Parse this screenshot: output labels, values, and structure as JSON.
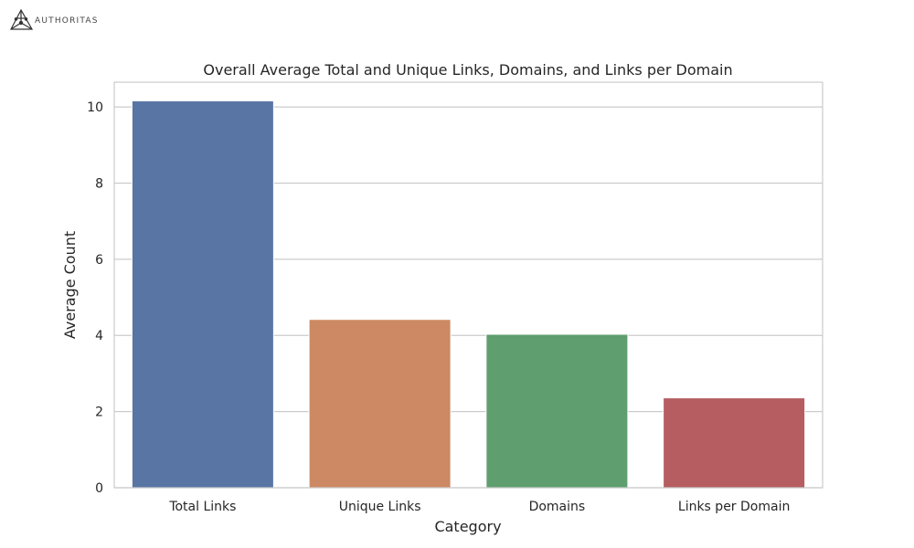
{
  "logo": {
    "text": "AUTHORITAS",
    "icon": "triangle-network-logo-icon",
    "color": "#333333"
  },
  "chart_data": {
    "type": "bar",
    "title": "Overall Average Total and Unique Links, Domains, and Links per Domain",
    "xlabel": "Category",
    "ylabel": "Average Count",
    "categories": [
      "Total Links",
      "Unique Links",
      "Domains",
      "Links per Domain"
    ],
    "values": [
      10.16,
      4.42,
      4.03,
      2.36
    ],
    "colors": [
      "#5875a4",
      "#cc8963",
      "#5f9e6e",
      "#b55d60"
    ],
    "ylim": [
      0,
      10.65
    ],
    "yticks": [
      0,
      2,
      4,
      6,
      8,
      10
    ],
    "grid": true,
    "legend": "none"
  }
}
